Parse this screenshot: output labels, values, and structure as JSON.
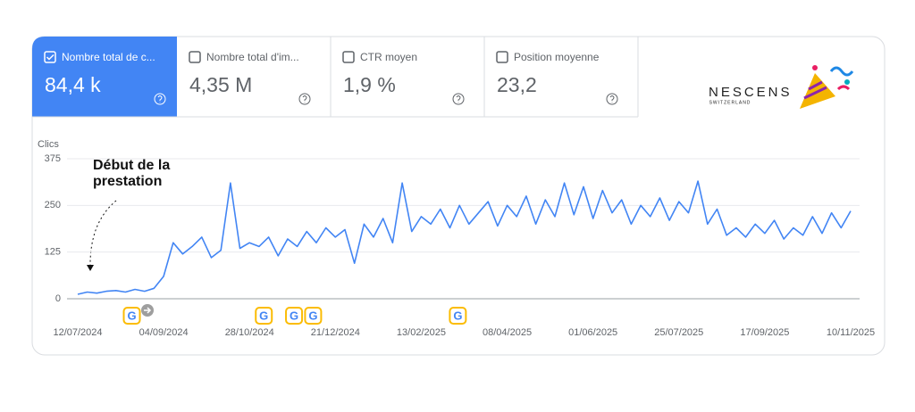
{
  "metrics": [
    {
      "label": "Nombre total de c...",
      "value": "84,4 k"
    },
    {
      "label": "Nombre total d'im...",
      "value": "4,35 M"
    },
    {
      "label": "CTR moyen",
      "value": "1,9 %"
    },
    {
      "label": "Position moyenne",
      "value": "23,2"
    }
  ],
  "brand": {
    "name": "NESCENS",
    "sub": "SWITZERLAND"
  },
  "chart_data": {
    "type": "line",
    "y_label": "Clics",
    "annotation": [
      "Début de la",
      "prestation"
    ],
    "x": [
      "2024-07-12",
      "2024-07-18",
      "2024-07-24",
      "2024-07-30",
      "2024-08-05",
      "2024-08-11",
      "2024-08-17",
      "2024-08-23",
      "2024-08-29",
      "2024-09-04",
      "2024-09-10",
      "2024-09-16",
      "2024-09-22",
      "2024-09-28",
      "2024-10-04",
      "2024-10-10",
      "2024-10-16",
      "2024-10-22",
      "2024-10-28",
      "2024-11-03",
      "2024-11-09",
      "2024-11-15",
      "2024-11-21",
      "2024-11-27",
      "2024-12-03",
      "2024-12-09",
      "2024-12-15",
      "2024-12-21",
      "2024-12-27",
      "2025-01-02",
      "2025-01-08",
      "2025-01-14",
      "2025-01-20",
      "2025-01-26",
      "2025-02-01",
      "2025-02-07",
      "2025-02-13",
      "2025-02-19",
      "2025-02-25",
      "2025-03-03",
      "2025-03-09",
      "2025-03-15",
      "2025-03-21",
      "2025-03-27",
      "2025-04-02",
      "2025-04-08",
      "2025-04-14",
      "2025-04-20",
      "2025-04-26",
      "2025-05-02",
      "2025-05-08",
      "2025-05-14",
      "2025-05-20",
      "2025-05-26",
      "2025-06-01",
      "2025-06-07",
      "2025-06-13",
      "2025-06-19",
      "2025-06-25",
      "2025-07-01",
      "2025-07-07",
      "2025-07-13",
      "2025-07-19",
      "2025-07-25",
      "2025-07-31",
      "2025-08-06",
      "2025-08-12",
      "2025-08-18",
      "2025-08-24",
      "2025-08-30",
      "2025-09-05",
      "2025-09-11",
      "2025-09-17",
      "2025-09-23",
      "2025-09-29",
      "2025-10-05",
      "2025-10-11",
      "2025-10-17",
      "2025-10-23",
      "2025-10-29",
      "2025-11-04",
      "2025-11-10"
    ],
    "series": [
      {
        "name": "Clics",
        "color": "#4285f4",
        "values": [
          12,
          18,
          15,
          20,
          22,
          18,
          25,
          20,
          28,
          60,
          150,
          120,
          140,
          165,
          110,
          130,
          310,
          135,
          150,
          140,
          165,
          115,
          160,
          140,
          180,
          150,
          190,
          165,
          185,
          95,
          200,
          165,
          215,
          150,
          310,
          180,
          220,
          200,
          240,
          190,
          250,
          200,
          230,
          260,
          195,
          250,
          220,
          275,
          200,
          265,
          220,
          310,
          225,
          300,
          215,
          290,
          230,
          265,
          200,
          250,
          220,
          270,
          210,
          260,
          230,
          315,
          200,
          240,
          170,
          190,
          165,
          200,
          175,
          210,
          160,
          190,
          170,
          220,
          175,
          230,
          190,
          235
        ]
      }
    ],
    "xlim": [
      "2024-07-12",
      "2025-11-10"
    ],
    "xticks": [
      {
        "value": "2024-07-12",
        "label": "12/07/2024"
      },
      {
        "value": "2024-09-04",
        "label": "04/09/2024"
      },
      {
        "value": "2024-10-28",
        "label": "28/10/2024"
      },
      {
        "value": "2024-12-21",
        "label": "21/12/2024"
      },
      {
        "value": "2025-02-13",
        "label": "13/02/2025"
      },
      {
        "value": "2025-04-08",
        "label": "08/04/2025"
      },
      {
        "value": "2025-06-01",
        "label": "01/06/2025"
      },
      {
        "value": "2025-07-25",
        "label": "25/07/2025"
      },
      {
        "value": "2025-09-17",
        "label": "17/09/2025"
      },
      {
        "value": "2025-11-10",
        "label": "10/11/2025"
      }
    ],
    "ylim": [
      0,
      375
    ],
    "yticks": [
      0,
      125,
      250,
      375
    ],
    "grid": true,
    "update_markers": {
      "label": "G",
      "x": [
        "2024-08-15",
        "2024-11-06",
        "2024-11-25",
        "2024-12-07",
        "2025-03-08"
      ]
    }
  }
}
